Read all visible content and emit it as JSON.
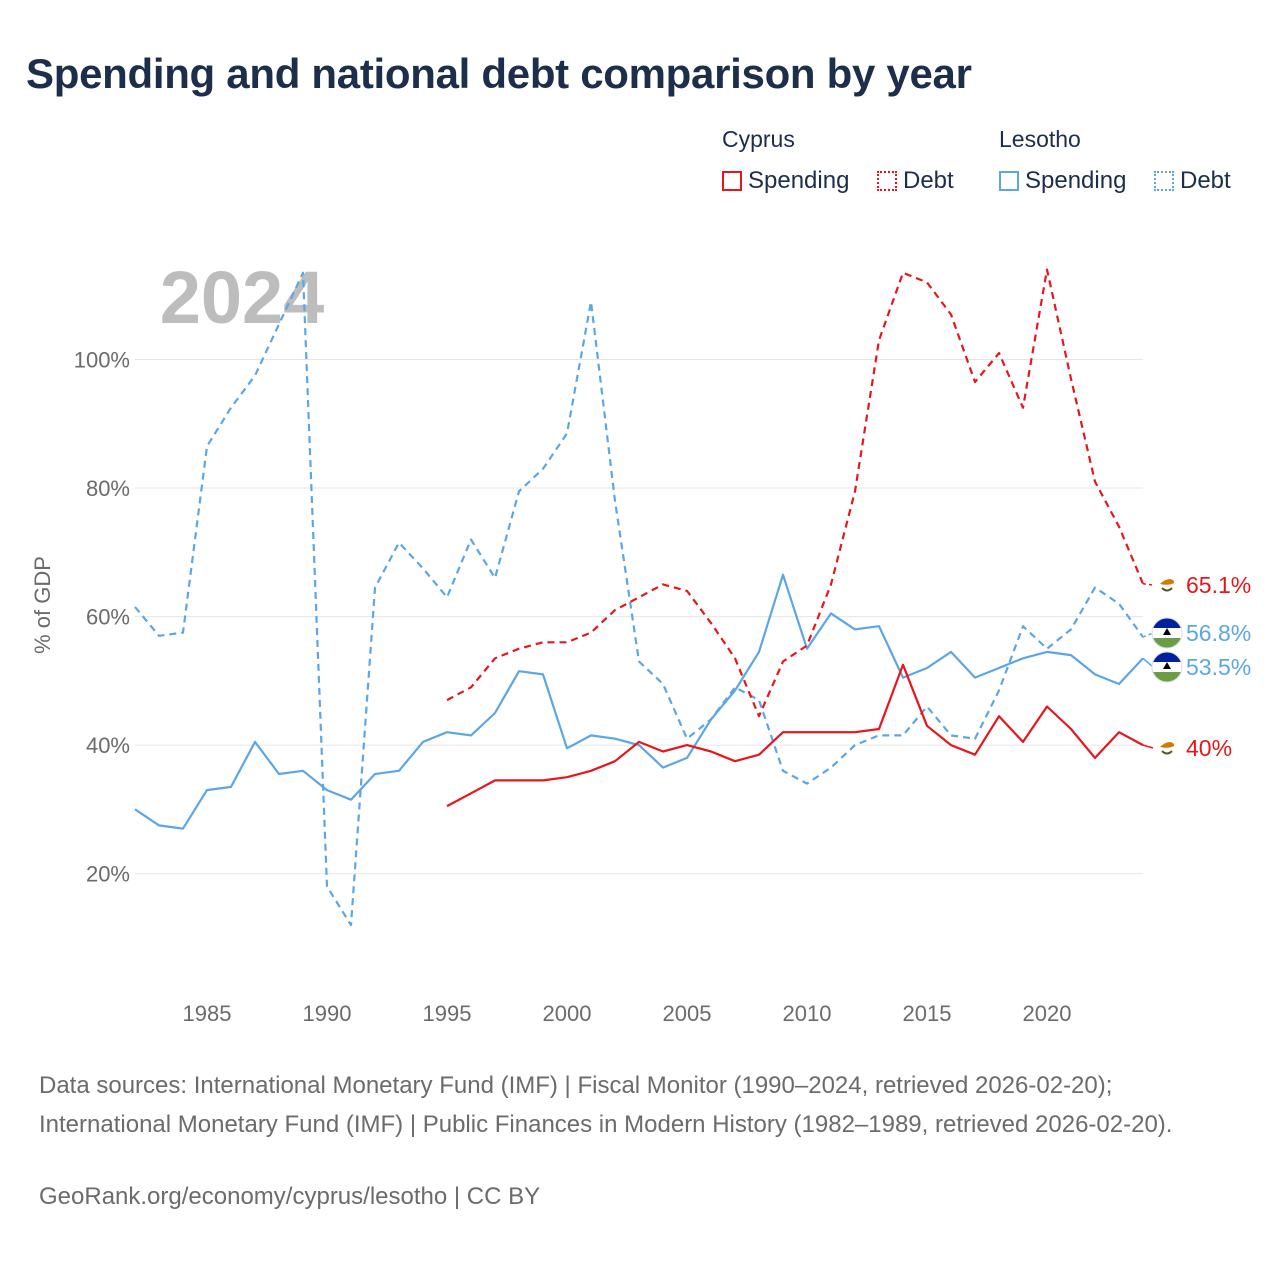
{
  "chart_data": {
    "type": "line",
    "title": "Spending and national debt comparison by year",
    "year_label": "2024",
    "ylabel": "% of GDP",
    "xlim": [
      1982,
      2024
    ],
    "ylim": [
      5,
      120
    ],
    "x_ticks": [
      1985,
      1990,
      1995,
      2000,
      2005,
      2010,
      2015,
      2020
    ],
    "y_ticks": [
      20,
      40,
      60,
      80,
      100
    ],
    "y_tick_labels": [
      "20%",
      "40%",
      "60%",
      "80%",
      "100%"
    ],
    "legend": {
      "groups": [
        {
          "country": "Cyprus",
          "items": [
            {
              "label": "Spending",
              "style": "solid",
              "color": "#e8161b"
            },
            {
              "label": "Debt",
              "style": "dotted",
              "color": "#e8161b"
            }
          ]
        },
        {
          "country": "Lesotho",
          "items": [
            {
              "label": "Spending",
              "style": "solid",
              "color": "#5ca6e6"
            },
            {
              "label": "Debt",
              "style": "dotted",
              "color": "#5ca6e6"
            }
          ]
        }
      ]
    },
    "series": [
      {
        "name": "Lesotho Debt",
        "country": "Lesotho",
        "metric": "Debt",
        "color": "#5ca6e6",
        "dashed": true,
        "start_year": 1982,
        "values": [
          61.5,
          57.0,
          57.5,
          86.5,
          92.5,
          97.5,
          105.5,
          113.5,
          18.0,
          12.0,
          64.5,
          71.5,
          67.5,
          63.0,
          72.0,
          66.0,
          79.5,
          83.0,
          88.5,
          109.0,
          78.0,
          53.0,
          49.5,
          41.0,
          44.0,
          49.0,
          47.0,
          36.0,
          34.0,
          36.5,
          40.0,
          41.5,
          41.5,
          46.0,
          41.5,
          41.0,
          48.5,
          58.5,
          55.0,
          58.0,
          64.5,
          62.0,
          56.8
        ],
        "end_label": "56.8%"
      },
      {
        "name": "Lesotho Spending",
        "country": "Lesotho",
        "metric": "Spending",
        "color": "#5ca6e6",
        "dashed": false,
        "start_year": 1982,
        "values": [
          30.0,
          27.5,
          27.0,
          33.0,
          33.5,
          40.5,
          35.5,
          36.0,
          33.0,
          31.5,
          35.5,
          36.0,
          40.5,
          42.0,
          41.5,
          45.0,
          51.5,
          51.0,
          39.5,
          41.5,
          41.0,
          40.0,
          36.5,
          38.0,
          44.0,
          48.5,
          54.5,
          66.5,
          55.0,
          60.5,
          58.0,
          58.5,
          50.5,
          52.0,
          54.5,
          50.5,
          52.0,
          53.5,
          54.5,
          54.0,
          51.0,
          49.5,
          53.5
        ],
        "end_label": "53.5%"
      },
      {
        "name": "Cyprus Debt",
        "country": "Cyprus",
        "metric": "Debt",
        "color": "#e8161b",
        "dashed": true,
        "start_year": 1995,
        "values": [
          47.0,
          49.0,
          53.5,
          55.0,
          56.0,
          56.0,
          57.5,
          61.0,
          63.0,
          65.0,
          64.0,
          59.0,
          53.5,
          44.5,
          53.0,
          55.5,
          65.0,
          79.5,
          103.0,
          113.5,
          112.0,
          107.0,
          96.5,
          101.0,
          92.5,
          114.0,
          97.0,
          81.0,
          74.0,
          65.1
        ],
        "end_label": "65.1%"
      },
      {
        "name": "Cyprus Spending",
        "country": "Cyprus",
        "metric": "Spending",
        "color": "#e8161b",
        "dashed": false,
        "start_year": 1995,
        "values": [
          30.5,
          32.5,
          34.5,
          34.5,
          34.5,
          35.0,
          36.0,
          37.5,
          40.5,
          39.0,
          40.0,
          39.0,
          37.5,
          38.5,
          42.0,
          42.0,
          42.0,
          42.0,
          42.5,
          52.5,
          43.0,
          40.0,
          38.5,
          44.5,
          40.5,
          46.0,
          42.5,
          38.0,
          42.0,
          40.0
        ],
        "end_label": "40%"
      }
    ],
    "markers": [
      {
        "country": "Cyprus",
        "icon": "cyprus-flag-icon"
      },
      {
        "country": "Lesotho",
        "icon": "lesotho-flag-icon"
      }
    ]
  },
  "footer": {
    "sources": "Data sources: International Monetary Fund (IMF) | Fiscal Monitor (1990–2024, retrieved 2026-02-20); International Monetary Fund (IMF) | Public Finances in Modern History (1982–1989, retrieved 2026-02-20).",
    "credit": "GeoRank.org/economy/cyprus/lesotho | CC BY"
  }
}
